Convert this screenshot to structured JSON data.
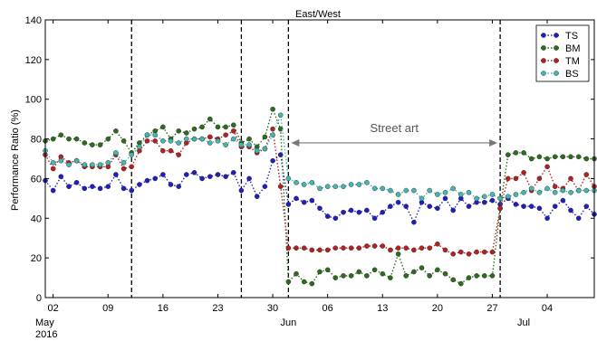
{
  "chart_data": {
    "type": "line",
    "title": "East/West",
    "ylabel": "Performance Ratio (%)",
    "xlabel": "",
    "ylim": [
      0,
      140
    ],
    "yticks": [
      0,
      20,
      40,
      60,
      80,
      100,
      120,
      140
    ],
    "xlim": [
      "2016-05-01",
      "2016-07-10"
    ],
    "x_tick_labels": [
      {
        "date": "2016-05-02",
        "label": "02"
      },
      {
        "date": "2016-05-09",
        "label": "09"
      },
      {
        "date": "2016-05-16",
        "label": "16"
      },
      {
        "date": "2016-05-23",
        "label": "23"
      },
      {
        "date": "2016-05-30",
        "label": "30"
      },
      {
        "date": "2016-06-06",
        "label": "06"
      },
      {
        "date": "2016-06-13",
        "label": "13"
      },
      {
        "date": "2016-06-20",
        "label": "20"
      },
      {
        "date": "2016-06-27",
        "label": "27"
      },
      {
        "date": "2016-07-04",
        "label": "04"
      }
    ],
    "month_labels": [
      {
        "date": "2016-05-01",
        "label": "May",
        "year": "2016"
      },
      {
        "date": "2016-06-01",
        "label": "Jun"
      },
      {
        "date": "2016-07-01",
        "label": "Jul"
      }
    ],
    "vlines": [
      "2016-05-12",
      "2016-05-26",
      "2016-06-01",
      "2016-06-28"
    ],
    "annotation": {
      "text": "Street art",
      "from": "2016-06-01",
      "to": "2016-06-28",
      "y": 78
    },
    "legend": {
      "position": "top-right"
    },
    "grid": true,
    "dates": [
      "2016-05-01",
      "2016-05-02",
      "2016-05-03",
      "2016-05-04",
      "2016-05-05",
      "2016-05-06",
      "2016-05-07",
      "2016-05-08",
      "2016-05-09",
      "2016-05-10",
      "2016-05-11",
      "2016-05-12",
      "2016-05-13",
      "2016-05-14",
      "2016-05-15",
      "2016-05-16",
      "2016-05-17",
      "2016-05-18",
      "2016-05-19",
      "2016-05-20",
      "2016-05-21",
      "2016-05-22",
      "2016-05-23",
      "2016-05-24",
      "2016-05-25",
      "2016-05-26",
      "2016-05-27",
      "2016-05-28",
      "2016-05-29",
      "2016-05-30",
      "2016-05-31",
      "2016-06-01",
      "2016-06-02",
      "2016-06-03",
      "2016-06-04",
      "2016-06-05",
      "2016-06-06",
      "2016-06-07",
      "2016-06-08",
      "2016-06-09",
      "2016-06-10",
      "2016-06-11",
      "2016-06-12",
      "2016-06-13",
      "2016-06-14",
      "2016-06-15",
      "2016-06-16",
      "2016-06-17",
      "2016-06-18",
      "2016-06-19",
      "2016-06-20",
      "2016-06-21",
      "2016-06-22",
      "2016-06-23",
      "2016-06-24",
      "2016-06-25",
      "2016-06-26",
      "2016-06-27",
      "2016-06-28",
      "2016-06-29",
      "2016-06-30",
      "2016-07-01",
      "2016-07-02",
      "2016-07-03",
      "2016-07-04",
      "2016-07-05",
      "2016-07-06",
      "2016-07-07",
      "2016-07-08",
      "2016-07-09",
      "2016-07-10"
    ],
    "series": [
      {
        "name": "TS",
        "color": "#1f1fbf",
        "values": [
          59,
          54,
          61,
          56,
          58,
          55,
          56,
          55,
          56,
          62,
          55,
          54,
          57,
          59,
          60,
          62,
          57,
          56,
          62,
          63,
          60,
          61,
          62,
          61,
          63,
          54,
          60,
          51,
          56,
          69,
          72,
          47,
          50,
          48,
          49,
          45,
          41,
          40,
          43,
          44,
          43,
          44,
          40,
          43,
          46,
          48,
          46,
          38,
          48,
          46,
          45,
          50,
          44,
          50,
          46,
          48,
          48,
          49,
          47,
          50,
          47,
          46,
          46,
          45,
          40,
          46,
          49,
          44,
          40,
          46,
          42
        ]
      },
      {
        "name": "BM",
        "color": "#2e6b1e",
        "values": [
          79,
          80,
          82,
          80,
          80,
          78,
          77,
          77,
          80,
          84,
          79,
          73,
          78,
          82,
          84,
          86,
          80,
          84,
          83,
          85,
          86,
          90,
          86,
          86,
          87,
          78,
          80,
          76,
          81,
          95,
          85,
          8,
          12,
          8,
          7,
          13,
          14,
          10,
          11,
          11,
          13,
          11,
          14,
          12,
          10,
          22,
          11,
          13,
          15,
          11,
          14,
          12,
          9,
          7,
          10,
          11,
          11,
          11,
          45,
          72,
          73,
          73,
          70,
          71,
          70,
          71,
          71,
          71,
          71,
          70,
          70
        ]
      },
      {
        "name": "TM",
        "color": "#b22222",
        "values": [
          72,
          65,
          71,
          68,
          69,
          66,
          66,
          66,
          66,
          72,
          65,
          66,
          74,
          79,
          79,
          74,
          74,
          72,
          78,
          80,
          80,
          81,
          80,
          82,
          84,
          76,
          76,
          73,
          75,
          85,
          56,
          25,
          25,
          25,
          24,
          24,
          24,
          25,
          25,
          25,
          25,
          26,
          26,
          26,
          24,
          25,
          25,
          24,
          25,
          25,
          27,
          24,
          22,
          23,
          22,
          23,
          23,
          23,
          45,
          60,
          60,
          63,
          54,
          60,
          66,
          56,
          55,
          60,
          54,
          62,
          56
        ]
      },
      {
        "name": "BS",
        "color": "#45b5b0",
        "values": [
          74,
          68,
          69,
          67,
          69,
          67,
          67,
          67,
          68,
          73,
          68,
          72,
          76,
          82,
          82,
          79,
          79,
          78,
          80,
          80,
          80,
          78,
          79,
          77,
          80,
          77,
          77,
          74,
          75,
          82,
          92,
          60,
          58,
          57,
          58,
          55,
          56,
          56,
          56,
          57,
          57,
          58,
          55,
          55,
          54,
          52,
          54,
          54,
          50,
          54,
          52,
          53,
          55,
          52,
          53,
          50,
          51,
          52,
          50,
          51,
          52,
          53,
          55,
          53,
          55,
          53,
          54,
          53,
          54,
          54,
          54
        ]
      }
    ]
  }
}
